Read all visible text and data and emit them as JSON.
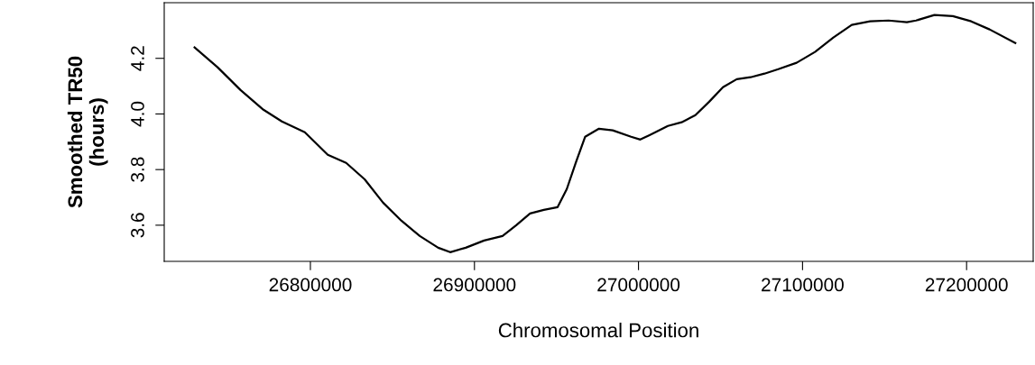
{
  "chart_data": {
    "type": "line",
    "xlabel": "Chromosomal Position",
    "ylabel": "Smoothed TR50\n(hours)",
    "x": [
      26729400,
      26743400,
      26757400,
      26771400,
      26782600,
      26796600,
      26802200,
      26810600,
      26821800,
      26833100,
      26844300,
      26855500,
      26866700,
      26877900,
      26885200,
      26894700,
      26905900,
      26917100,
      26925500,
      26933900,
      26942300,
      26950700,
      26956300,
      26961900,
      26967500,
      26975900,
      26984300,
      26995500,
      27001100,
      27006700,
      27017900,
      27026300,
      27034700,
      27043100,
      27051500,
      27059900,
      27068300,
      27076800,
      27085200,
      27096400,
      27107600,
      27118800,
      27130000,
      27141200,
      27152400,
      27163600,
      27169200,
      27180400,
      27191600,
      27202800,
      27214000,
      27229700
    ],
    "series": [
      {
        "color": "#000000",
        "values": [
          4.239,
          4.168,
          4.086,
          4.015,
          3.973,
          3.934,
          3.902,
          3.853,
          3.824,
          3.765,
          3.681,
          3.616,
          3.561,
          3.519,
          3.503,
          3.519,
          3.545,
          3.561,
          3.6,
          3.642,
          3.655,
          3.665,
          3.73,
          3.827,
          3.918,
          3.947,
          3.941,
          3.918,
          3.908,
          3.924,
          3.957,
          3.97,
          3.996,
          4.044,
          4.096,
          4.125,
          4.132,
          4.145,
          4.161,
          4.184,
          4.223,
          4.275,
          4.32,
          4.333,
          4.336,
          4.33,
          4.336,
          4.356,
          4.352,
          4.333,
          4.304,
          4.255
        ]
      }
    ],
    "xlim": [
      26710900,
      27240600
    ],
    "ylim": [
      3.47,
      4.4
    ],
    "xticks": [
      26800000,
      26900000,
      27000000,
      27100000,
      27200000
    ],
    "yticks": [
      3.6,
      3.8,
      {
        "value": 4.0,
        "label": "4.0"
      },
      4.2
    ],
    "grid": false,
    "legend": false,
    "marker": "none",
    "line_style": "solid"
  }
}
